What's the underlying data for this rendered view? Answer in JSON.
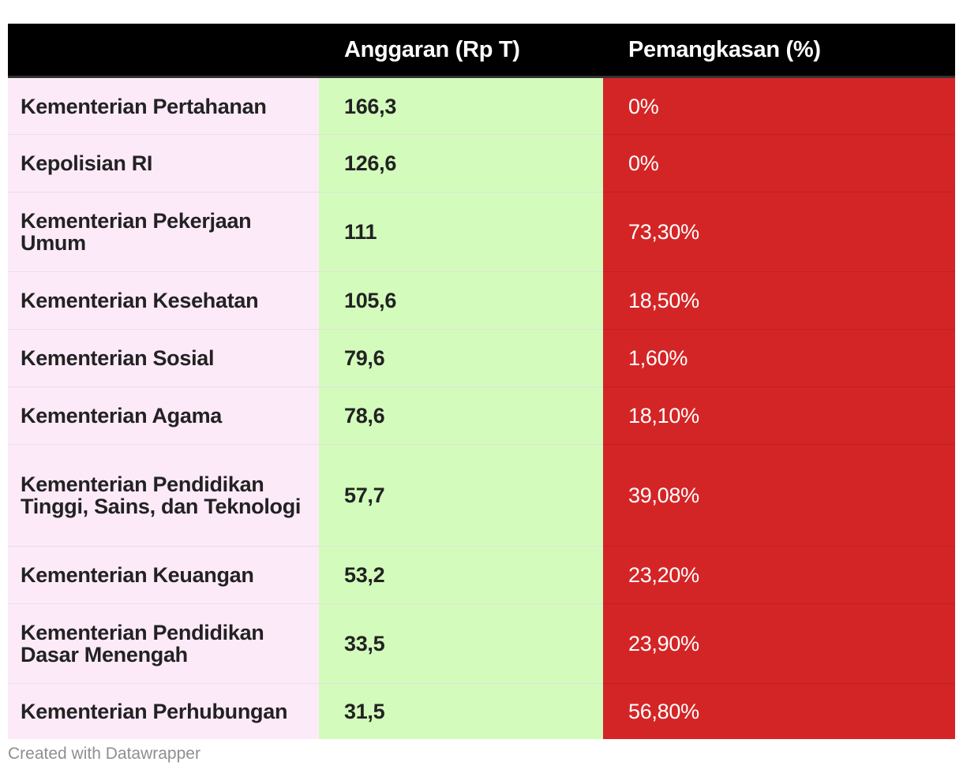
{
  "chart_data": {
    "type": "table",
    "columns": [
      "",
      "Anggaran (Rp T)",
      "Pemangkasan (%)"
    ],
    "rows": [
      {
        "ministry": "Kementerian Pertahanan",
        "budget": "166,3",
        "cut": "0%"
      },
      {
        "ministry": "Kepolisian RI",
        "budget": "126,6",
        "cut": "0%"
      },
      {
        "ministry": "Kementerian Pekerjaan Umum",
        "budget": "111",
        "cut": "73,30%"
      },
      {
        "ministry": "Kementerian Kesehatan",
        "budget": "105,6",
        "cut": "18,50%"
      },
      {
        "ministry": "Kementerian Sosial",
        "budget": "79,6",
        "cut": "1,60%"
      },
      {
        "ministry": "Kementerian Agama",
        "budget": "78,6",
        "cut": "18,10%"
      },
      {
        "ministry": "Kementerian Pendidikan Tinggi, Sains, dan Teknologi",
        "budget": "57,7",
        "cut": "39,08%"
      },
      {
        "ministry": "Kementerian Keuangan",
        "budget": "53,2",
        "cut": "23,20%"
      },
      {
        "ministry": "Kementerian Pendidikan Dasar Menengah",
        "budget": "33,5",
        "cut": "23,90%"
      },
      {
        "ministry": "Kementerian Perhubungan",
        "budget": "31,5",
        "cut": "56,80%"
      }
    ],
    "colors": {
      "header_bg": "#000000",
      "ministry_bg": "#fdeaf9",
      "budget_bg": "#d3fcbc",
      "cut_bg": "#d42526"
    }
  },
  "footer": {
    "credit": "Created with Datawrapper"
  }
}
